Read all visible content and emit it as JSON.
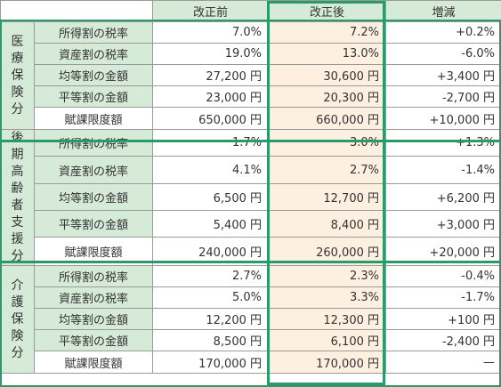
{
  "header": {
    "corner": "",
    "before": "改正前",
    "after": "改正後",
    "change": "増減"
  },
  "sections": [
    {
      "title": "医療保険分",
      "rows": [
        {
          "label": "所得割の税率",
          "before": "7.0%",
          "after": "7.2%",
          "change": "+0.2%"
        },
        {
          "label": "資産割の税率",
          "before": "19.0%",
          "after": "13.0%",
          "change": "-6.0%"
        },
        {
          "label": "均等割の金額",
          "before": "27,200 円",
          "after": "30,600 円",
          "change": "+3,400 円"
        },
        {
          "label": "平等割の金額",
          "before": "23,000 円",
          "after": "20,300 円",
          "change": "-2,700 円"
        },
        {
          "label": "賦課限度額",
          "before": "650,000 円",
          "after": "660,000 円",
          "change": "+10,000 円"
        }
      ]
    },
    {
      "title": "後期高齢者支援分",
      "rows": [
        {
          "label": "所得割の税率",
          "before": "1.7%",
          "after": "3.0%",
          "change": "+1.3%"
        },
        {
          "label": "資産割の税率",
          "before": "4.1%",
          "after": "2.7%",
          "change": "-1.4%"
        },
        {
          "label": "均等割の金額",
          "before": "6,500 円",
          "after": "12,700 円",
          "change": "+6,200 円"
        },
        {
          "label": "平等割の金額",
          "before": "5,400 円",
          "after": "8,400 円",
          "change": "+3,000 円"
        },
        {
          "label": "賦課限度額",
          "before": "240,000 円",
          "after": "260,000 円",
          "change": "+20,000 円"
        }
      ]
    },
    {
      "title": "介護保険分",
      "rows": [
        {
          "label": "所得割の税率",
          "before": "2.7%",
          "after": "2.3%",
          "change": "-0.4%"
        },
        {
          "label": "資産割の税率",
          "before": "5.0%",
          "after": "3.3%",
          "change": "-1.7%"
        },
        {
          "label": "均等割の金額",
          "before": "12,200 円",
          "after": "12,300 円",
          "change": "+100 円"
        },
        {
          "label": "平等割の金額",
          "before": "8,500 円",
          "after": "6,100 円",
          "change": "-2,400 円"
        },
        {
          "label": "賦課限度額",
          "before": "170,000 円",
          "after": "170,000 円",
          "change": "—"
        }
      ]
    }
  ],
  "colors": {
    "accent": "#2a9a6b",
    "header_bg": "#d6ead8",
    "after_bg": "#fdf0e1"
  }
}
